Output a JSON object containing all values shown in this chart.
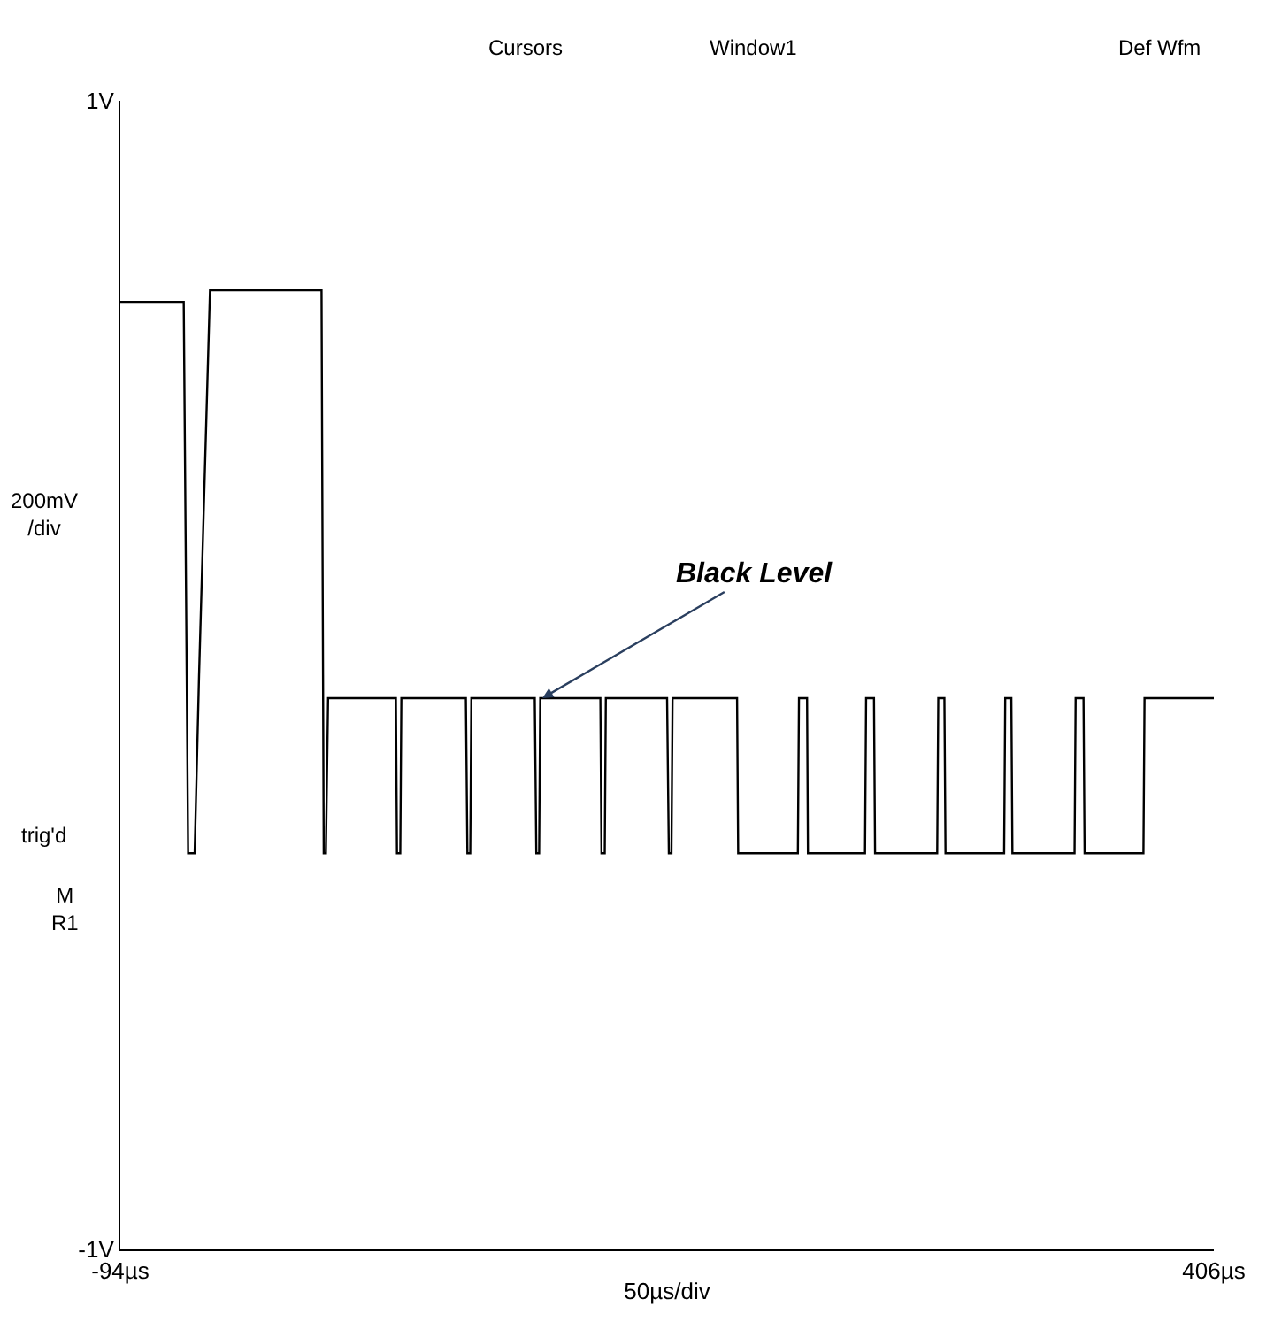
{
  "chart_data": {
    "type": "line",
    "xlabel": "50µs/div",
    "x": [
      -94,
      -65,
      -63,
      -60,
      -58,
      -53,
      -2,
      -1,
      0,
      1,
      2,
      32,
      32.5,
      34,
      34.5,
      64,
      64.7,
      66,
      66.5,
      95.5,
      96.2,
      97.5,
      98,
      125.5,
      126,
      127.5,
      128,
      156,
      156.8,
      158,
      158.5,
      188,
      188.5,
      215.8,
      216.3,
      220,
      220.4,
      246.5,
      247,
      250.6,
      251.1,
      279.5,
      280,
      282.8,
      283.3,
      310.1,
      310.6,
      313.4,
      313.9,
      342.3,
      342.8,
      346.4,
      346.9,
      373.8,
      374.3,
      377.9,
      378.4,
      406
    ],
    "series": [
      {
        "color": "#000000",
        "values": [
          0.65,
          0.65,
          -0.31,
          -0.31,
          0.0,
          0.67,
          0.67,
          -0.31,
          -0.31,
          -0.04,
          -0.04,
          -0.04,
          -0.31,
          -0.31,
          -0.04,
          -0.04,
          -0.31,
          -0.31,
          -0.04,
          -0.04,
          -0.31,
          -0.31,
          -0.04,
          -0.04,
          -0.31,
          -0.31,
          -0.04,
          -0.04,
          -0.31,
          -0.31,
          -0.04,
          -0.04,
          -0.31,
          -0.31,
          -0.04,
          -0.04,
          -0.31,
          -0.31,
          -0.04,
          -0.04,
          -0.31,
          -0.31,
          -0.04,
          -0.04,
          -0.31,
          -0.31,
          -0.04,
          -0.04,
          -0.31,
          -0.31,
          -0.04,
          -0.04,
          -0.31,
          -0.31,
          -0.04,
          -0.04,
          -0.04,
          -0.04
        ]
      }
    ],
    "xlim": [
      -94,
      406
    ],
    "xticks": [
      {
        "value": -94,
        "label": "-94µs"
      },
      {
        "value": 406,
        "label": "406µs"
      }
    ],
    "ylim": [
      -1,
      1
    ],
    "yticks": [
      {
        "value": 1,
        "label": "1V"
      },
      {
        "value": -1,
        "label": "-1V"
      }
    ],
    "legend": false,
    "marker": "none",
    "line_style": "solid",
    "annotations": [
      {
        "text": "Black Level",
        "x": 99,
        "y": -0.04
      },
      "Cursors",
      "Window1",
      "Def Wfm",
      "200mV\n/div",
      "trig'd",
      "M\nR1"
    ]
  }
}
